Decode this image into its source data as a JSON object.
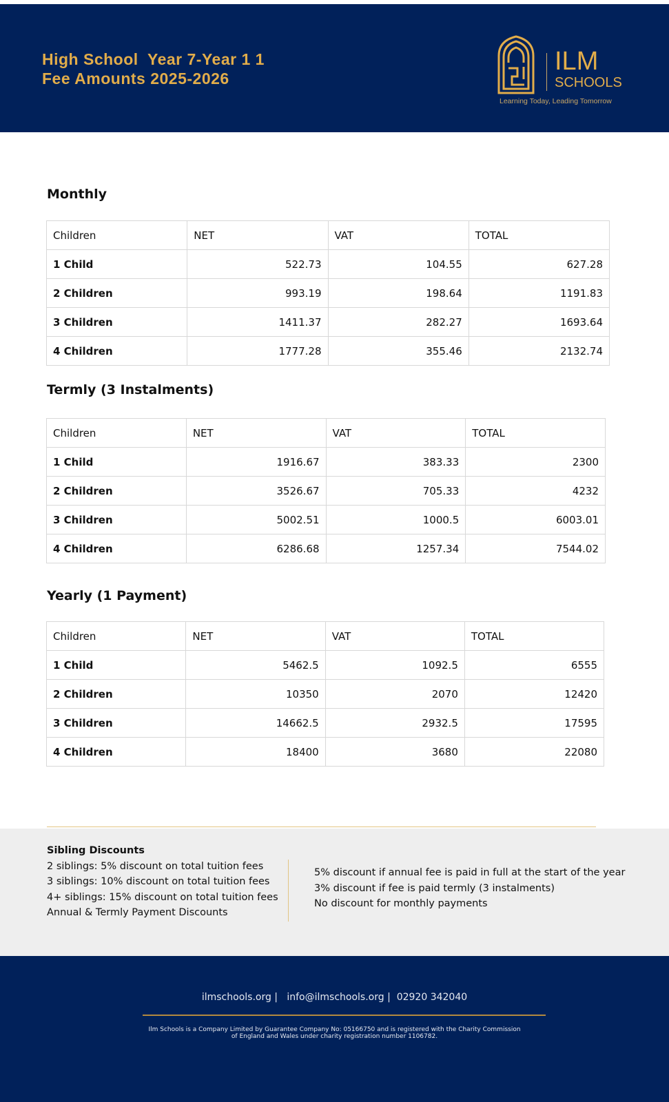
{
  "header": {
    "title_line1": "High School  Year 7-Year 1 1",
    "title_line2": "Fee Amounts 2025-2026",
    "logo": {
      "name": "ILM",
      "sub": "SCHOOLS",
      "tagline": "Learning Today, Leading Tomorrow"
    },
    "brand_color": "#01215a",
    "accent_color": "#e2ad4a"
  },
  "tables": [
    {
      "title": "Monthly",
      "columns": [
        "Children",
        "NET",
        "VAT",
        "TOTAL"
      ],
      "rows": [
        [
          "1 Child",
          "522.73",
          "104.55",
          "627.28"
        ],
        [
          "2 Children",
          "993.19",
          "198.64",
          "1191.83"
        ],
        [
          "3 Children",
          "1411.37",
          "282.27",
          "1693.64"
        ],
        [
          "4 Children",
          "1777.28",
          "355.46",
          "2132.74"
        ]
      ]
    },
    {
      "title": "Termly (3 Instalments)",
      "columns": [
        "Children",
        "NET",
        "VAT",
        "TOTAL"
      ],
      "rows": [
        [
          "1 Child",
          "1916.67",
          "383.33",
          "2300"
        ],
        [
          "2 Children",
          "3526.67",
          "705.33",
          "4232"
        ],
        [
          "3 Children",
          "5002.51",
          "1000.5",
          "6003.01"
        ],
        [
          "4 Children",
          "6286.68",
          "1257.34",
          "7544.02"
        ]
      ]
    },
    {
      "title": "Yearly (1 Payment)",
      "columns": [
        "Children",
        "NET",
        "VAT",
        "TOTAL"
      ],
      "rows": [
        [
          "1 Child",
          "5462.5",
          "1092.5",
          "6555"
        ],
        [
          "2 Children",
          "10350",
          "2070",
          "12420"
        ],
        [
          "3 Children",
          "14662.5",
          "2932.5",
          "17595"
        ],
        [
          "4 Children",
          "18400",
          "3680",
          "22080"
        ]
      ]
    }
  ],
  "discounts": {
    "heading": "Sibling Discounts",
    "left": [
      "2 siblings: 5% discount on total tuition fees",
      "3 siblings: 10% discount on total tuition fees",
      "4+ siblings: 15% discount on total tuition fees",
      "Annual & Termly Payment Discounts"
    ],
    "right": [
      "5% discount if annual fee is paid in full at the start of the year",
      "3% discount if fee is paid termly (3 instalments)",
      "No discount for monthly payments"
    ]
  },
  "footer": {
    "contact": "ilmschools.org |   info@ilmschools.org |  02920 342040",
    "legal_line1": "Ilm Schools is a Company Limited by Guarantee Company No: 05166750 and is registered with the Charity Commission",
    "legal_line2": "of England and Wales under charity registration number 1106782."
  }
}
